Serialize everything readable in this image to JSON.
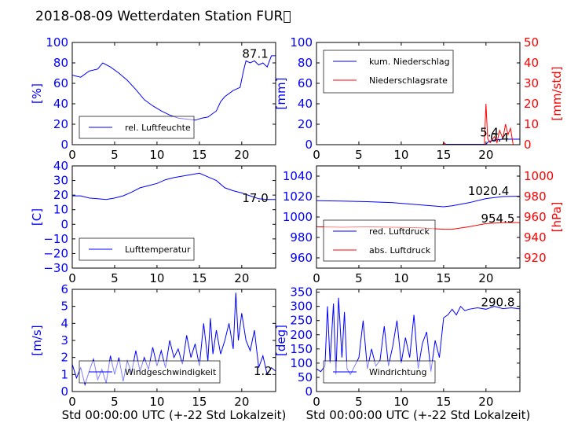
{
  "title": "2018-08-09 Wetterdaten Station FUR\u0000",
  "colors": {
    "primary": "#0000ff",
    "secondary": "#ff0000",
    "axis": "#000000"
  },
  "chart_data": [
    {
      "id": "humidity",
      "type": "line",
      "ylabel": "[%]",
      "xlim": [
        0,
        24
      ],
      "ylim": [
        0,
        100
      ],
      "xticks": [
        "0",
        "5",
        "10",
        "15",
        "20"
      ],
      "yticks": [
        "0",
        "20",
        "40",
        "60",
        "80",
        "100"
      ],
      "legend": {
        "placement": "lower-left",
        "entries": [
          "rel. Luftfeuchte"
        ]
      },
      "annotation": {
        "text": "87.1",
        "x": 21.6,
        "y": 89
      },
      "series": [
        {
          "name": "rel. Luftfeuchte",
          "color": "#0000ff",
          "x": [
            0,
            1,
            2,
            3,
            3.6,
            4.5,
            5.5,
            6.5,
            7.5,
            8.5,
            9.5,
            10.5,
            11.5,
            12.5,
            13.5,
            14.5,
            15.3,
            16,
            16.5,
            17,
            17.5,
            18,
            19,
            19.8,
            20.2,
            20.5,
            21,
            21.5,
            22,
            22.5,
            23,
            23.5,
            24
          ],
          "y": [
            68,
            66,
            72,
            74,
            80,
            76,
            70,
            63,
            54,
            44,
            38,
            33,
            29,
            26,
            25,
            24,
            26,
            27,
            30,
            33,
            42,
            47,
            53,
            56,
            72,
            82,
            80,
            82,
            78,
            80,
            76,
            87,
            87
          ]
        }
      ]
    },
    {
      "id": "precipitation",
      "type": "line",
      "ylabel": "[mm]",
      "y2label": "[mm/std]",
      "xlim": [
        0,
        24
      ],
      "ylim": [
        0,
        100
      ],
      "y2lim": [
        0,
        50
      ],
      "xticks": [
        "0",
        "5",
        "10",
        "15",
        "20"
      ],
      "yticks": [
        "0",
        "20",
        "40",
        "60",
        "80",
        "100"
      ],
      "y2ticks": [
        "0",
        "10",
        "20",
        "30",
        "40",
        "50"
      ],
      "legend": {
        "placement": "upper-left",
        "entries": [
          "kum. Niederschlag",
          "Niederschlagsrate"
        ]
      },
      "annotations": [
        {
          "text": "5.4",
          "x": 20.4,
          "y": 6
        },
        {
          "text": "0.4",
          "x": 21.6,
          "y": 3.5
        }
      ],
      "series": [
        {
          "name": "kum. Niederschlag",
          "color": "#0000ff",
          "axis": "left",
          "x": [
            0,
            15,
            15.2,
            20,
            20.3,
            21,
            22,
            23,
            24
          ],
          "y": [
            0,
            0,
            0.4,
            0.4,
            3,
            4.6,
            5.4,
            5.4,
            5.4
          ]
        },
        {
          "name": "Niederschlagsrate",
          "color": "#ff0000",
          "axis": "right",
          "x": [
            0,
            14.9,
            15,
            15.2,
            15.3,
            19.8,
            20,
            20.2,
            20.5,
            21,
            21.3,
            21.6,
            22,
            22.3,
            22.6,
            22.9,
            23.2,
            24
          ],
          "y": [
            0,
            0,
            1,
            0.5,
            0,
            0,
            20,
            3,
            1,
            4,
            1,
            7,
            3,
            10,
            5,
            8,
            0,
            0
          ]
        }
      ]
    },
    {
      "id": "temperature",
      "type": "line",
      "ylabel": "[C]",
      "xlim": [
        0,
        24
      ],
      "ylim": [
        -30,
        40
      ],
      "xticks": [
        "0",
        "5",
        "10",
        "15",
        "20"
      ],
      "yticks": [
        "−30",
        "−20",
        "−10",
        "0",
        "10",
        "20",
        "30",
        "40"
      ],
      "legend": {
        "placement": "lower-left",
        "entries": [
          "Lufttemperatur"
        ]
      },
      "annotation": {
        "text": "17.0",
        "x": 21.6,
        "y": 18
      },
      "series": [
        {
          "name": "Lufttemperatur",
          "color": "#0000ff",
          "x": [
            0,
            1,
            2,
            3,
            4,
            5,
            6,
            7,
            8,
            9,
            10,
            11,
            12,
            13,
            14,
            15,
            16,
            17,
            18,
            19,
            20,
            21,
            22,
            23,
            24
          ],
          "y": [
            19.5,
            19.5,
            18,
            17.5,
            17,
            18,
            19.5,
            22,
            25,
            26.5,
            28,
            30.5,
            32,
            33,
            34,
            35,
            32.5,
            30,
            25,
            23,
            21.5,
            19.5,
            17.5,
            17,
            17
          ]
        }
      ]
    },
    {
      "id": "pressure",
      "type": "line",
      "ylabel": "",
      "y2label": "[hPa]",
      "xlim": [
        0,
        24
      ],
      "ylim": [
        950,
        1050
      ],
      "y2lim": [
        910,
        1010
      ],
      "xticks": [
        "0",
        "5",
        "10",
        "15",
        "20"
      ],
      "yticks": [
        "960",
        "980",
        "1000",
        "1020",
        "1040"
      ],
      "y2ticks": [
        "920",
        "940",
        "960",
        "980",
        "1000"
      ],
      "legend": {
        "placement": "lower-left",
        "entries": [
          "red. Luftdruck",
          "abs. Luftdruck"
        ]
      },
      "annotations": [
        {
          "text": "1020.4",
          "x": 20.3,
          "y": 1025.5
        },
        {
          "text": "954.5",
          "x": 21.4,
          "y": 998.5
        }
      ],
      "series": [
        {
          "name": "red. Luftdruck",
          "color": "#0000ff",
          "axis": "left",
          "x": [
            0,
            3,
            6,
            9,
            12,
            15,
            16,
            18,
            20,
            22,
            24
          ],
          "y": [
            1016,
            1015.5,
            1015,
            1014,
            1012,
            1010,
            1011,
            1014,
            1018,
            1020,
            1020.4
          ]
        },
        {
          "name": "abs. Luftdruck",
          "color": "#ff0000",
          "axis": "right",
          "x": [
            0,
            3,
            6,
            9,
            12,
            15,
            16,
            18,
            20,
            22,
            24
          ],
          "y": [
            950.5,
            950,
            950.5,
            950,
            949.5,
            948,
            948,
            950.5,
            953.5,
            954.5,
            954.5
          ]
        }
      ]
    },
    {
      "id": "windspeed",
      "type": "line",
      "ylabel": "[m/s]",
      "xlim": [
        0,
        24
      ],
      "ylim": [
        0,
        6
      ],
      "xticks": [
        "0",
        "5",
        "10",
        "15",
        "20"
      ],
      "yticks": [
        "0",
        "1",
        "2",
        "3",
        "4",
        "5",
        "6"
      ],
      "xlabel": "Std 00:00:00 UTC (+-22 Std Lokalzeit)",
      "legend": {
        "placement": "lower-left",
        "entries": [
          "Windgeschwindigkeit"
        ]
      },
      "annotation": {
        "text": "1.2",
        "x": 22.5,
        "y": 1.2
      },
      "series": [
        {
          "name": "Windgeschwindigkeit",
          "color": "#0000ff",
          "x": [
            0,
            0.5,
            1,
            1.5,
            2,
            2.5,
            3,
            3.5,
            4,
            4.5,
            5,
            5.5,
            6,
            6.5,
            7,
            7.5,
            8,
            8.5,
            9,
            9.5,
            10,
            10.5,
            11,
            11.5,
            12,
            12.5,
            13,
            13.5,
            14,
            14.5,
            15,
            15.5,
            16,
            16.3,
            16.6,
            17,
            17.5,
            18,
            18.5,
            19,
            19.3,
            19.6,
            20,
            20.5,
            21,
            21.5,
            22,
            22.5,
            23,
            23.5,
            24
          ],
          "y": [
            1.6,
            0.8,
            1.4,
            0.4,
            1.2,
            1.9,
            0.7,
            1.3,
            0.5,
            2.1,
            1.0,
            2.0,
            0.6,
            1.8,
            1.1,
            2.4,
            1.2,
            2.0,
            1.3,
            2.6,
            1.5,
            2.4,
            1.4,
            3.0,
            2.0,
            2.5,
            1.6,
            3.3,
            2.0,
            2.8,
            1.5,
            4.0,
            1.8,
            4.3,
            2.2,
            3.6,
            2.2,
            3.0,
            4.0,
            2.5,
            5.8,
            3.0,
            4.6,
            3.0,
            2.4,
            3.6,
            1.4,
            2.1,
            1.0,
            1.4,
            1.2
          ]
        }
      ]
    },
    {
      "id": "winddirection",
      "type": "line",
      "ylabel": "[deg]",
      "xlim": [
        0,
        24
      ],
      "ylim": [
        0,
        360
      ],
      "xticks": [
        "0",
        "5",
        "10",
        "15",
        "20"
      ],
      "yticks": [
        "0",
        "50",
        "100",
        "150",
        "200",
        "250",
        "300",
        "350"
      ],
      "xlabel": "Std 00:00:00 UTC (+-22 Std Lokalzeit)",
      "legend": {
        "placement": "lower-left",
        "entries": [
          "Windrichtung"
        ]
      },
      "annotation": {
        "text": "290.8",
        "x": 21.4,
        "y": 315
      },
      "series": [
        {
          "name": "Windrichtung",
          "color": "#0000ff",
          "x": [
            0,
            0.5,
            1,
            1.3,
            1.6,
            2,
            2.3,
            2.6,
            3,
            3.3,
            3.6,
            4,
            4.5,
            5,
            5.5,
            6,
            6.5,
            7,
            7.5,
            8,
            8.5,
            9,
            9.5,
            10,
            10.5,
            11,
            11.5,
            12,
            12.5,
            13,
            13.5,
            14,
            14.5,
            15,
            15.5,
            16,
            16.5,
            17,
            17.5,
            18,
            19,
            20,
            21,
            22,
            23,
            24
          ],
          "y": [
            80,
            70,
            90,
            300,
            100,
            310,
            60,
            330,
            120,
            280,
            80,
            60,
            90,
            120,
            250,
            80,
            150,
            90,
            110,
            230,
            90,
            160,
            250,
            100,
            190,
            120,
            270,
            80,
            170,
            210,
            70,
            180,
            120,
            260,
            270,
            290,
            270,
            300,
            285,
            290,
            295,
            290,
            300,
            292,
            295,
            291
          ]
        }
      ]
    }
  ]
}
